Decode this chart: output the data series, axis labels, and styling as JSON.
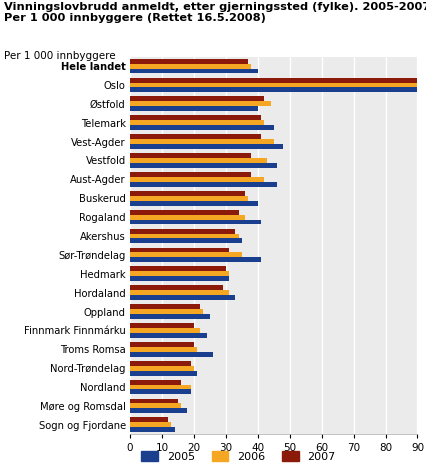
{
  "title_line1": "Vinningslovbrudd anmeldt, etter gjerningssted (fylke). 2005-2007.",
  "title_line2": "Per 1 000 innbyggere (Rettet 16.5.2008)",
  "ylabel_label": "Per 1 000 innbyggere",
  "categories": [
    "Hele landet",
    "Oslo",
    "Østfold",
    "Telemark",
    "Vest-Agder",
    "Vestfold",
    "Aust-Agder",
    "Buskerud",
    "Rogaland",
    "Akershus",
    "Sør-Trøndelag",
    "Hedmark",
    "Hordaland",
    "Oppland",
    "Finnmark Finnmárku",
    "Troms Romsa",
    "Nord-Trøndelag",
    "Nordland",
    "Møre og Romsdal",
    "Sogn og Fjordane"
  ],
  "values_2005": [
    40,
    91,
    40,
    45,
    48,
    46,
    46,
    40,
    41,
    35,
    41,
    31,
    33,
    25,
    24,
    26,
    21,
    19,
    18,
    14
  ],
  "values_2006": [
    38,
    90,
    44,
    42,
    45,
    43,
    42,
    37,
    36,
    34,
    35,
    31,
    31,
    23,
    22,
    21,
    20,
    19,
    16,
    13
  ],
  "values_2007": [
    37,
    90,
    42,
    41,
    41,
    38,
    38,
    36,
    34,
    33,
    31,
    30,
    29,
    22,
    20,
    20,
    19,
    16,
    15,
    12
  ],
  "color_2005": "#1a3f8f",
  "color_2006": "#f5a623",
  "color_2007": "#8b1a0a",
  "xlim": [
    0,
    90
  ],
  "xticks": [
    0,
    10,
    20,
    30,
    40,
    50,
    60,
    70,
    80,
    90
  ],
  "bar_height": 0.26,
  "background_color": "#ebebeb",
  "grid_color": "#ffffff",
  "legend_labels": [
    "2005",
    "2006",
    "2007"
  ]
}
